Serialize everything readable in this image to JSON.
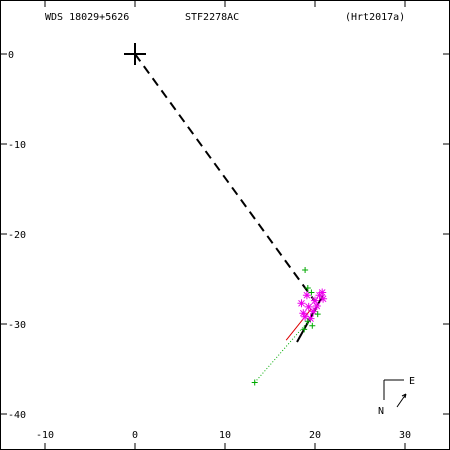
{
  "header": {
    "wds_id": "WDS 18029+5626",
    "discoverer": "STF2278AC",
    "reference": "(Hrt2017a)"
  },
  "chart_data": {
    "type": "scatter",
    "xlim": [
      -15,
      35
    ],
    "ylim": [
      -44,
      6
    ],
    "x_ticks": [
      -10,
      0,
      10,
      20,
      30
    ],
    "y_ticks": [
      0,
      -10,
      -20,
      -30,
      -40
    ],
    "x_tick_labels": [
      "-10",
      "0",
      "10",
      "20",
      "30"
    ],
    "y_tick_labels": [
      "0",
      "-10",
      "-20",
      "-30",
      "-40"
    ],
    "primary": {
      "x": 0,
      "y": 0
    },
    "dashed_line": {
      "from": [
        0,
        0
      ],
      "to": [
        20.0,
        -27.5
      ]
    },
    "orbit_arc": {
      "from": [
        18.0,
        -32.0
      ],
      "to": [
        20.9,
        -26.8
      ]
    },
    "red_arc": {
      "from": [
        16.8,
        -31.8
      ],
      "to": [
        19.6,
        -28.3
      ]
    },
    "dotted_connector": {
      "from": [
        13.3,
        -36.5
      ],
      "to": [
        19.6,
        -29.3
      ]
    },
    "green_plus_points": [
      [
        13.3,
        -36.5
      ],
      [
        18.9,
        -24.0
      ],
      [
        19.2,
        -26.0
      ],
      [
        19.6,
        -26.5
      ],
      [
        19.2,
        -29.7
      ],
      [
        19.7,
        -30.2
      ],
      [
        18.8,
        -30.6
      ],
      [
        20.3,
        -28.9
      ]
    ],
    "magenta_star_points": [
      [
        18.5,
        -27.7
      ],
      [
        19.3,
        -28.1
      ],
      [
        20.0,
        -27.4
      ],
      [
        20.5,
        -26.8
      ],
      [
        20.8,
        -26.5
      ],
      [
        19.8,
        -28.6
      ],
      [
        18.9,
        -29.2
      ],
      [
        20.2,
        -28.0
      ],
      [
        19.5,
        -29.4
      ],
      [
        20.9,
        -27.2
      ],
      [
        19.1,
        -26.8
      ],
      [
        18.7,
        -28.8
      ]
    ],
    "colors": {
      "measure": "#00aa00",
      "star": "#ee00ee",
      "orbit": "#000000",
      "red": "#dd0000"
    },
    "compass": {
      "north_label": "N",
      "east_label": "E"
    }
  }
}
